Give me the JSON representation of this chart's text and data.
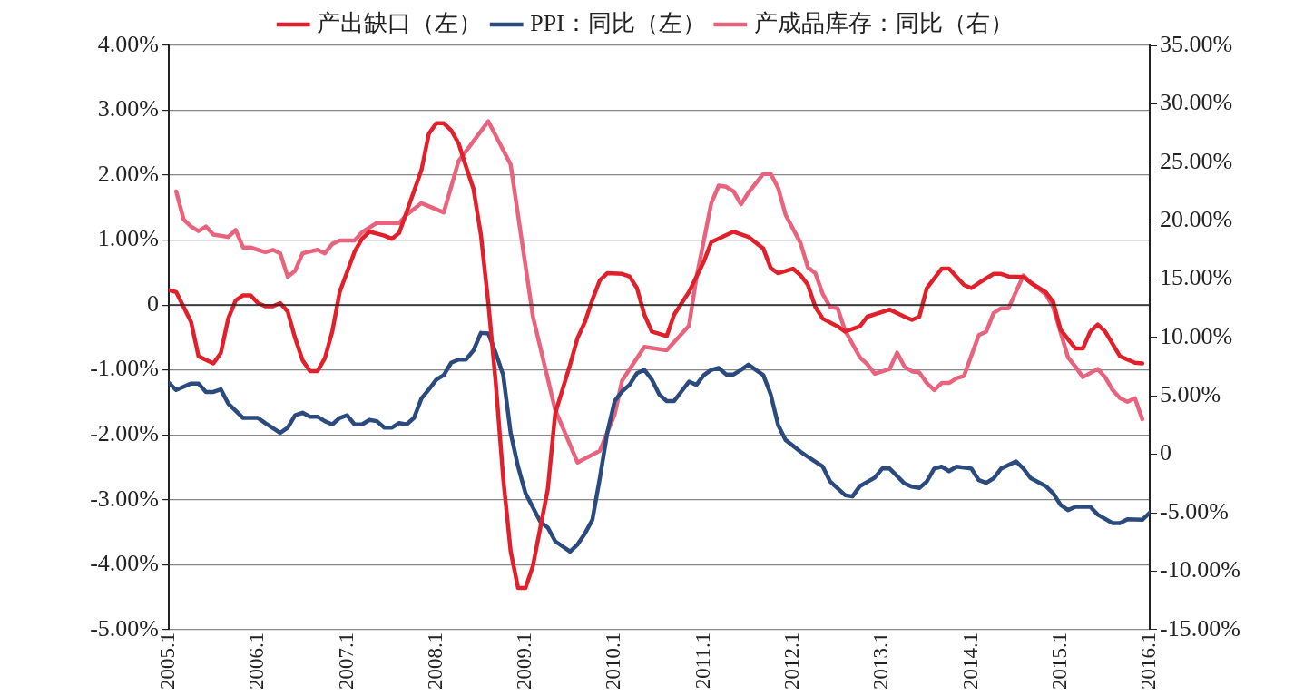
{
  "chart_data": {
    "type": "line",
    "marker": "none",
    "line_style": "solid",
    "grid": "y",
    "legend": "top",
    "xlim": [
      "2005-01",
      "2016-01"
    ],
    "xticks": [
      {
        "value": "2005-01",
        "label": "2005.1"
      },
      {
        "value": "2006-01",
        "label": "2006.1"
      },
      {
        "value": "2007-01",
        "label": "2007.1"
      },
      {
        "value": "2008-01",
        "label": "2008.1"
      },
      {
        "value": "2009-01",
        "label": "2009.1"
      },
      {
        "value": "2010-01",
        "label": "2010.1"
      },
      {
        "value": "2011-01",
        "label": "2011.1"
      },
      {
        "value": "2012-01",
        "label": "2012.1"
      },
      {
        "value": "2013-01",
        "label": "2013.1"
      },
      {
        "value": "2014-01",
        "label": "2014.1"
      },
      {
        "value": "2015-01",
        "label": "2015.1"
      },
      {
        "value": "2016-01",
        "label": "2016.1"
      }
    ],
    "ylim": [
      -5,
      4
    ],
    "yticks": [
      {
        "value": 4,
        "label": "4.00%"
      },
      {
        "value": 3,
        "label": "3.00%"
      },
      {
        "value": 2,
        "label": "2.00%"
      },
      {
        "value": 1,
        "label": "1.00%"
      },
      0,
      {
        "value": -1,
        "label": "-1.00%"
      },
      {
        "value": -2,
        "label": "-2.00%"
      },
      {
        "value": -3,
        "label": "-3.00%"
      },
      {
        "value": -4,
        "label": "-4.00%"
      },
      {
        "value": -5,
        "label": "-5.00%"
      }
    ],
    "y2lim": [
      -15,
      35
    ],
    "y2ticks": [
      {
        "value": 35,
        "label": "35.00%"
      },
      {
        "value": 30,
        "label": "30.00%"
      },
      {
        "value": 25,
        "label": "25.00%"
      },
      {
        "value": 20,
        "label": "20.00%"
      },
      {
        "value": 15,
        "label": "15.00%"
      },
      {
        "value": 10,
        "label": "10.00%"
      },
      {
        "value": 5,
        "label": "5.00%"
      },
      0,
      {
        "value": -5,
        "label": "-5.00%"
      },
      {
        "value": -10,
        "label": "-10.00%"
      },
      {
        "value": -15,
        "label": "-15.00%"
      }
    ],
    "ref_lines": [
      {
        "axis": "y",
        "value": 0,
        "color": "#222222",
        "line_style": "solid"
      }
    ],
    "series": [
      {
        "name": "产出缺口（左）",
        "color": "#e0202a",
        "axis": "y",
        "x": [
          "2005-01",
          "2005-02",
          "2005-04",
          "2005-05",
          "2005-07",
          "2005-08",
          "2005-09",
          "2005-10",
          "2005-11",
          "2005-12",
          "2006-01",
          "2006-02",
          "2006-03",
          "2006-04",
          "2006-05",
          "2006-06",
          "2006-07",
          "2006-08",
          "2006-09",
          "2006-10",
          "2006-11",
          "2006-12",
          "2007-02",
          "2007-03",
          "2007-04",
          "2007-06",
          "2007-07",
          "2007-08",
          "2007-09",
          "2007-11",
          "2007-12",
          "2008-01",
          "2008-02",
          "2008-03",
          "2008-04",
          "2008-05",
          "2008-06",
          "2008-07",
          "2008-08",
          "2008-09",
          "2008-10",
          "2008-11",
          "2008-12",
          "2009-01",
          "2009-02",
          "2009-04",
          "2009-05",
          "2009-07",
          "2009-08",
          "2009-09",
          "2009-10",
          "2009-11",
          "2009-12",
          "2010-02",
          "2010-03",
          "2010-04",
          "2010-05",
          "2010-06",
          "2010-08",
          "2010-09",
          "2010-11",
          "2011-01",
          "2011-02",
          "2011-05",
          "2011-07",
          "2011-09",
          "2011-10",
          "2011-11",
          "2012-01",
          "2012-02",
          "2012-03",
          "2012-04",
          "2012-05",
          "2012-07",
          "2012-08",
          "2012-10",
          "2012-11",
          "2013-02",
          "2013-04",
          "2013-05",
          "2013-06",
          "2013-07",
          "2013-09",
          "2013-10",
          "2013-12",
          "2014-01",
          "2014-02",
          "2014-04",
          "2014-05",
          "2014-06",
          "2014-08",
          "2014-09",
          "2014-11",
          "2014-12",
          "2015-01",
          "2015-03",
          "2015-04",
          "2015-05",
          "2015-06",
          "2015-07",
          "2015-09",
          "2015-11",
          "2015-12"
        ],
        "values": [
          0.23,
          0.2,
          -0.26,
          -0.79,
          -0.9,
          -0.74,
          -0.21,
          0.07,
          0.15,
          0.15,
          0.03,
          -0.02,
          -0.02,
          0.03,
          -0.1,
          -0.51,
          -0.85,
          -1.02,
          -1.02,
          -0.82,
          -0.41,
          0.2,
          0.82,
          1.02,
          1.13,
          1.07,
          1.02,
          1.11,
          1.43,
          2.08,
          2.64,
          2.8,
          2.8,
          2.69,
          2.49,
          2.13,
          1.79,
          1.08,
          0.03,
          -1.2,
          -2.67,
          -3.79,
          -4.36,
          -4.36,
          -4.02,
          -2.84,
          -1.67,
          -0.92,
          -0.51,
          -0.26,
          0.08,
          0.38,
          0.49,
          0.48,
          0.44,
          0.26,
          -0.15,
          -0.41,
          -0.48,
          -0.15,
          0.2,
          0.67,
          0.97,
          1.13,
          1.05,
          0.87,
          0.57,
          0.49,
          0.56,
          0.46,
          0.31,
          -0.03,
          -0.21,
          -0.33,
          -0.41,
          -0.33,
          -0.18,
          -0.07,
          -0.18,
          -0.23,
          -0.18,
          0.26,
          0.56,
          0.56,
          0.31,
          0.26,
          0.34,
          0.48,
          0.48,
          0.44,
          0.43,
          0.34,
          0.2,
          0.05,
          -0.38,
          -0.67,
          -0.67,
          -0.41,
          -0.3,
          -0.41,
          -0.79,
          -0.89,
          -0.9
        ]
      },
      {
        "name": "PPI：同比（左）",
        "color": "#2b4a7e",
        "axis": "y",
        "x": [
          "2005-01",
          "2005-02",
          "2005-04",
          "2005-05",
          "2005-06",
          "2005-07",
          "2005-08",
          "2005-09",
          "2005-11",
          "2006-01",
          "2006-02",
          "2006-04",
          "2006-05",
          "2006-06",
          "2006-07",
          "2006-08",
          "2006-09",
          "2006-10",
          "2006-11",
          "2006-12",
          "2007-01",
          "2007-02",
          "2007-03",
          "2007-04",
          "2007-05",
          "2007-06",
          "2007-07",
          "2007-08",
          "2007-09",
          "2007-10",
          "2007-11",
          "2007-12",
          "2008-01",
          "2008-02",
          "2008-03",
          "2008-04",
          "2008-05",
          "2008-06",
          "2008-07",
          "2008-08",
          "2008-09",
          "2008-10",
          "2008-11",
          "2008-12",
          "2009-01",
          "2009-03",
          "2009-04",
          "2009-05",
          "2009-07",
          "2009-08",
          "2009-09",
          "2009-10",
          "2009-11",
          "2009-12",
          "2010-01",
          "2010-02",
          "2010-03",
          "2010-04",
          "2010-05",
          "2010-06",
          "2010-07",
          "2010-08",
          "2010-09",
          "2010-10",
          "2010-11",
          "2010-12",
          "2011-01",
          "2011-02",
          "2011-03",
          "2011-04",
          "2011-05",
          "2011-06",
          "2011-07",
          "2011-09",
          "2011-10",
          "2011-11",
          "2011-12",
          "2012-02",
          "2012-03",
          "2012-05",
          "2012-06",
          "2012-08",
          "2012-09",
          "2012-10",
          "2012-12",
          "2013-01",
          "2013-02",
          "2013-04",
          "2013-05",
          "2013-06",
          "2013-07",
          "2013-08",
          "2013-09",
          "2013-10",
          "2013-11",
          "2014-01",
          "2014-02",
          "2014-03",
          "2014-04",
          "2014-05",
          "2014-07",
          "2014-08",
          "2014-09",
          "2014-11",
          "2014-12",
          "2015-01",
          "2015-02",
          "2015-03",
          "2015-05",
          "2015-06",
          "2015-08",
          "2015-09",
          "2015-10",
          "2015-12",
          "2016-01"
        ],
        "values": [
          -1.2,
          -1.31,
          -1.21,
          -1.21,
          -1.34,
          -1.34,
          -1.3,
          -1.52,
          -1.74,
          -1.74,
          -1.82,
          -1.97,
          -1.89,
          -1.7,
          -1.66,
          -1.72,
          -1.72,
          -1.79,
          -1.84,
          -1.74,
          -1.7,
          -1.84,
          -1.84,
          -1.77,
          -1.79,
          -1.89,
          -1.89,
          -1.82,
          -1.84,
          -1.74,
          -1.44,
          -1.3,
          -1.15,
          -1.08,
          -0.89,
          -0.84,
          -0.84,
          -0.7,
          -0.43,
          -0.44,
          -0.74,
          -1.08,
          -1.97,
          -2.49,
          -2.9,
          -3.34,
          -3.43,
          -3.64,
          -3.8,
          -3.69,
          -3.52,
          -3.31,
          -2.67,
          -1.97,
          -1.48,
          -1.33,
          -1.23,
          -1.05,
          -1.0,
          -1.15,
          -1.38,
          -1.48,
          -1.48,
          -1.33,
          -1.18,
          -1.23,
          -1.08,
          -1.0,
          -0.97,
          -1.07,
          -1.07,
          -1.0,
          -0.92,
          -1.08,
          -1.38,
          -1.85,
          -2.08,
          -2.26,
          -2.34,
          -2.49,
          -2.72,
          -2.93,
          -2.95,
          -2.79,
          -2.66,
          -2.52,
          -2.52,
          -2.75,
          -2.8,
          -2.82,
          -2.72,
          -2.52,
          -2.49,
          -2.56,
          -2.49,
          -2.52,
          -2.7,
          -2.74,
          -2.67,
          -2.52,
          -2.41,
          -2.52,
          -2.67,
          -2.79,
          -2.9,
          -3.08,
          -3.16,
          -3.11,
          -3.11,
          -3.23,
          -3.36,
          -3.36,
          -3.3,
          -3.31,
          -3.2
        ]
      },
      {
        "name": "产成品库存：同比（右）",
        "color": "#e8647e",
        "axis": "y2",
        "x": [
          "2005-02",
          "2005-03",
          "2005-04",
          "2005-05",
          "2005-06",
          "2005-07",
          "2005-09",
          "2005-10",
          "2005-11",
          "2005-12",
          "2006-02",
          "2006-03",
          "2006-04",
          "2006-05",
          "2006-06",
          "2006-07",
          "2006-09",
          "2006-10",
          "2006-11",
          "2006-12",
          "2007-02",
          "2007-03",
          "2007-05",
          "2007-08",
          "2007-09",
          "2007-11",
          "2008-02",
          "2008-04",
          "2008-08",
          "2008-11",
          "2009-02",
          "2009-05",
          "2009-08",
          "2009-11",
          "2010-01",
          "2010-02",
          "2010-05",
          "2010-08",
          "2010-11",
          "2010-12",
          "2011-02",
          "2011-03",
          "2011-04",
          "2011-05",
          "2011-06",
          "2011-07",
          "2011-09",
          "2011-10",
          "2011-11",
          "2011-12",
          "2012-02",
          "2012-03",
          "2012-04",
          "2012-05",
          "2012-06",
          "2012-07",
          "2012-08",
          "2012-10",
          "2012-11",
          "2012-12",
          "2013-02",
          "2013-03",
          "2013-04",
          "2013-05",
          "2013-06",
          "2013-07",
          "2013-08",
          "2013-09",
          "2013-10",
          "2013-11",
          "2013-12",
          "2014-02",
          "2014-03",
          "2014-04",
          "2014-05",
          "2014-06",
          "2014-08",
          "2014-09",
          "2014-11",
          "2014-12",
          "2015-02",
          "2015-03",
          "2015-04",
          "2015-06",
          "2015-07",
          "2015-08",
          "2015-09",
          "2015-10",
          "2015-11",
          "2015-12"
        ],
        "values": [
          22.5,
          20.1,
          19.5,
          19.1,
          19.5,
          18.8,
          18.6,
          19.2,
          17.7,
          17.7,
          17.3,
          17.5,
          17.2,
          15.2,
          15.7,
          17.2,
          17.5,
          17.2,
          18.0,
          18.3,
          18.3,
          19.0,
          19.8,
          19.8,
          20.5,
          21.5,
          20.7,
          25.1,
          28.5,
          24.8,
          11.8,
          3.8,
          -0.7,
          0.3,
          3.4,
          6.3,
          9.2,
          8.9,
          11.0,
          15.1,
          21.5,
          23.0,
          22.9,
          22.5,
          21.4,
          22.4,
          24.0,
          24.0,
          22.8,
          20.5,
          18.1,
          16.0,
          15.5,
          13.7,
          12.6,
          12.5,
          10.6,
          8.3,
          7.7,
          6.9,
          7.3,
          8.7,
          7.5,
          7.1,
          7.0,
          6.1,
          5.5,
          6.1,
          6.1,
          6.5,
          6.7,
          10.2,
          10.5,
          12.1,
          12.5,
          12.5,
          15.3,
          14.7,
          13.7,
          12.6,
          8.3,
          7.5,
          6.6,
          7.3,
          6.6,
          5.5,
          4.8,
          4.5,
          4.8,
          3.0
        ]
      }
    ]
  }
}
